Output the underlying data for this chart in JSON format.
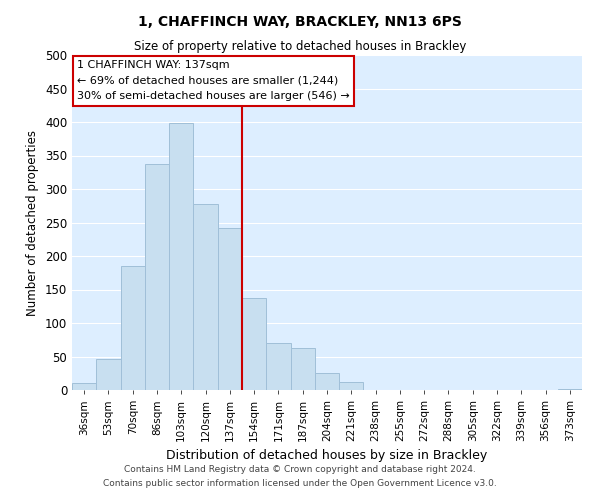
{
  "title": "1, CHAFFINCH WAY, BRACKLEY, NN13 6PS",
  "subtitle": "Size of property relative to detached houses in Brackley",
  "xlabel": "Distribution of detached houses by size in Brackley",
  "ylabel": "Number of detached properties",
  "bar_color": "#c8dff0",
  "bar_edge_color": "#a0bfd8",
  "bin_labels": [
    "36sqm",
    "53sqm",
    "70sqm",
    "86sqm",
    "103sqm",
    "120sqm",
    "137sqm",
    "154sqm",
    "171sqm",
    "187sqm",
    "204sqm",
    "221sqm",
    "238sqm",
    "255sqm",
    "272sqm",
    "288sqm",
    "305sqm",
    "322sqm",
    "339sqm",
    "356sqm",
    "373sqm"
  ],
  "bar_heights": [
    10,
    46,
    185,
    338,
    398,
    278,
    242,
    137,
    70,
    62,
    26,
    12,
    0,
    0,
    0,
    0,
    0,
    0,
    0,
    0,
    2
  ],
  "ylim": [
    0,
    500
  ],
  "yticks": [
    0,
    50,
    100,
    150,
    200,
    250,
    300,
    350,
    400,
    450,
    500
  ],
  "vline_pos": 6.5,
  "vline_color": "#cc0000",
  "annotation_title": "1 CHAFFINCH WAY: 137sqm",
  "annotation_line1": "← 69% of detached houses are smaller (1,244)",
  "annotation_line2": "30% of semi-detached houses are larger (546) →",
  "annotation_box_color": "#ffffff",
  "annotation_box_edge": "#cc0000",
  "footer1": "Contains HM Land Registry data © Crown copyright and database right 2024.",
  "footer2": "Contains public sector information licensed under the Open Government Licence v3.0.",
  "background_color": "#ffffff",
  "plot_bg_color": "#ddeeff",
  "grid_color": "#ffffff"
}
